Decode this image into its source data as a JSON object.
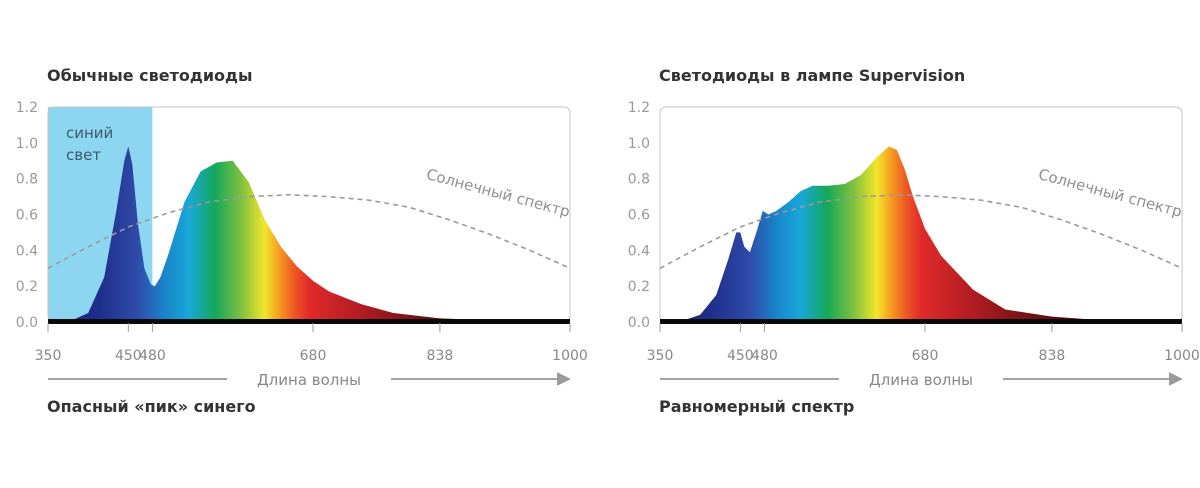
{
  "chart_data": [
    {
      "type": "area",
      "title": "Обычные светодиоды",
      "caption": "Опасный «пик» синего",
      "xlabel": "Длина волны",
      "ylabel": "",
      "ylim": [
        0,
        1.2
      ],
      "yticks": [
        "1.2",
        "1.0",
        "0.8",
        "0.6",
        "0.4",
        "0.2",
        "0.0"
      ],
      "xticks": [
        "350",
        "450",
        "480",
        "680",
        "838",
        "1000"
      ],
      "region_label_line1": "синий",
      "region_label_line2": "свет",
      "blue_region": [
        350,
        480
      ],
      "sun_label": "Солнечный спектр",
      "grid": false,
      "series": [
        {
          "x": [
            350,
            380,
            400,
            420,
            435,
            445,
            450,
            455,
            462,
            470,
            478,
            483,
            490,
            500,
            520,
            540,
            560,
            580,
            600,
            620,
            640,
            660,
            680,
            700,
            740,
            780,
            838,
            900,
            1000
          ],
          "y": [
            0.0,
            0.01,
            0.05,
            0.25,
            0.62,
            0.9,
            0.98,
            0.88,
            0.55,
            0.3,
            0.21,
            0.2,
            0.25,
            0.38,
            0.67,
            0.84,
            0.89,
            0.9,
            0.78,
            0.57,
            0.42,
            0.31,
            0.23,
            0.17,
            0.1,
            0.05,
            0.02,
            0.01,
            0.01
          ]
        },
        {
          "name": "Солнечный спектр",
          "x": [
            350,
            400,
            450,
            500,
            550,
            600,
            650,
            700,
            750,
            800,
            850,
            900,
            950,
            1000
          ],
          "y": [
            0.3,
            0.42,
            0.53,
            0.61,
            0.67,
            0.7,
            0.71,
            0.7,
            0.68,
            0.64,
            0.57,
            0.49,
            0.4,
            0.3
          ]
        }
      ]
    },
    {
      "type": "area",
      "title": "Светодиоды в лампе Supervision",
      "caption": "Равномерный спектр",
      "xlabel": "Длина волны",
      "ylabel": "",
      "ylim": [
        0,
        1.2
      ],
      "yticks": [
        "1.2",
        "1.0",
        "0.8",
        "0.6",
        "0.4",
        "0.2",
        "0.0"
      ],
      "xticks": [
        "350",
        "450",
        "480",
        "680",
        "838",
        "1000"
      ],
      "sun_label": "Солнечный спектр",
      "grid": false,
      "series": [
        {
          "x": [
            350,
            380,
            400,
            420,
            435,
            445,
            450,
            455,
            462,
            470,
            478,
            485,
            495,
            510,
            525,
            540,
            560,
            580,
            600,
            620,
            635,
            645,
            655,
            665,
            680,
            700,
            740,
            780,
            838,
            900,
            1000
          ],
          "y": [
            0.0,
            0.01,
            0.04,
            0.15,
            0.35,
            0.5,
            0.5,
            0.42,
            0.39,
            0.5,
            0.62,
            0.6,
            0.62,
            0.67,
            0.73,
            0.76,
            0.76,
            0.77,
            0.82,
            0.92,
            0.98,
            0.96,
            0.85,
            0.7,
            0.52,
            0.37,
            0.18,
            0.07,
            0.03,
            0.01,
            0.01
          ]
        },
        {
          "name": "Солнечный спектр",
          "x": [
            350,
            400,
            450,
            500,
            550,
            600,
            650,
            700,
            750,
            800,
            850,
            900,
            950,
            1000
          ],
          "y": [
            0.3,
            0.42,
            0.53,
            0.61,
            0.67,
            0.7,
            0.71,
            0.7,
            0.68,
            0.64,
            0.57,
            0.49,
            0.4,
            0.3
          ]
        }
      ]
    }
  ]
}
